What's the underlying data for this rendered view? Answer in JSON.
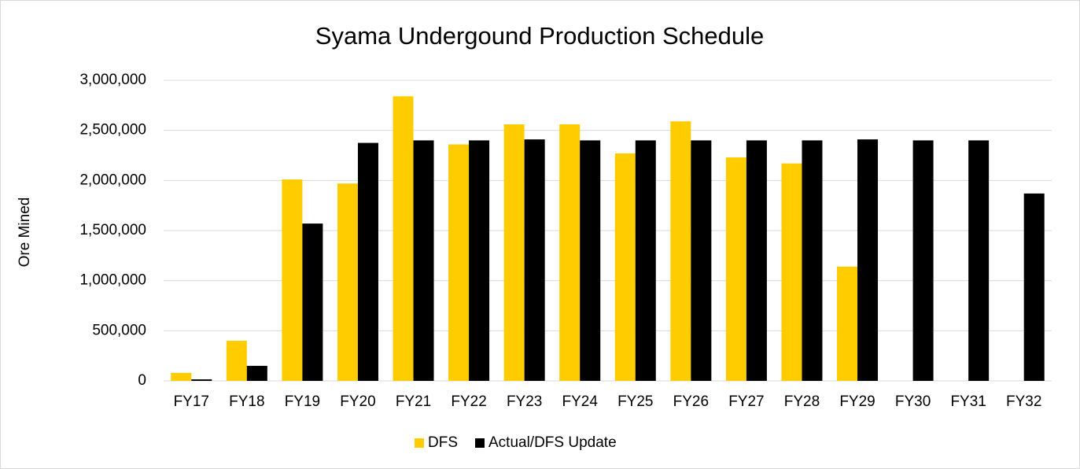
{
  "chart_data": {
    "type": "bar",
    "title": "Syama Undergound Production Schedule",
    "y_label": "Ore Mined",
    "categories": [
      "FY17",
      "FY18",
      "FY19",
      "FY20",
      "FY21",
      "FY22",
      "FY23",
      "FY24",
      "FY25",
      "FY26",
      "FY27",
      "FY28",
      "FY29",
      "FY30",
      "FY31",
      "FY32"
    ],
    "series": [
      {
        "name": "DFS",
        "color": "#ffcc00",
        "values": [
          80000,
          400000,
          2010000,
          1970000,
          2840000,
          2360000,
          2560000,
          2560000,
          2270000,
          2590000,
          2230000,
          2170000,
          1140000,
          null,
          null,
          null
        ]
      },
      {
        "name": "Actual/DFS Update",
        "color": "#000000",
        "values": [
          15000,
          150000,
          1570000,
          2375000,
          2400000,
          2400000,
          2410000,
          2400000,
          2400000,
          2400000,
          2400000,
          2400000,
          2410000,
          2400000,
          2400000,
          1870000
        ]
      }
    ],
    "ylim": [
      0,
      3000000
    ],
    "yticks": [
      0,
      {
        "value": 500000,
        "label": "500,000"
      },
      {
        "value": 1000000,
        "label": "1,000,000"
      },
      {
        "value": 1500000,
        "label": "1,500,000"
      },
      {
        "value": 2000000,
        "label": "2,000,000"
      },
      {
        "value": 2500000,
        "label": "2,500,000"
      },
      {
        "value": 3000000,
        "label": "3,000,000"
      }
    ],
    "grid": true,
    "legend": "bottom"
  }
}
